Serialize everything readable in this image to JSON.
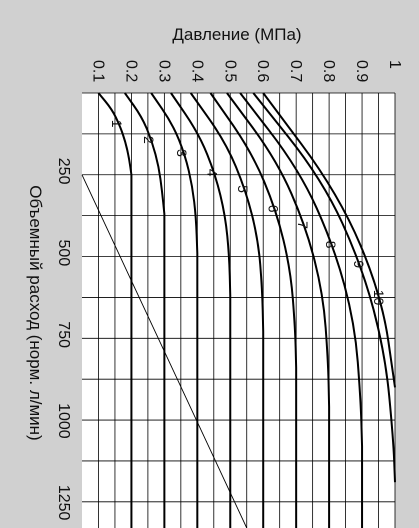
{
  "chart_data": {
    "type": "line",
    "title": "",
    "xlabel": "Давление (МПа)",
    "ylabel": "Объемный расход (норм. л/мин)",
    "x_ticks": [
      "0.1",
      "0.2",
      "0.3",
      "0.4",
      "0.5",
      "0.6",
      "0.7",
      "0.8",
      "0.9",
      "1"
    ],
    "y_ticks": [
      "250",
      "500",
      "750",
      "1000",
      "1250"
    ],
    "xlim": [
      0.05,
      1.0
    ],
    "ylim": [
      0,
      1330
    ],
    "grid": true,
    "series": [
      {
        "name": "1",
        "x": [
          0.1,
          0.141,
          0.165,
          0.182,
          0.193,
          0.2
        ],
        "y": [
          0,
          50,
          100,
          150,
          200,
          250
        ]
      },
      {
        "name": "2",
        "x": [
          0.18,
          0.233,
          0.263,
          0.283,
          0.293,
          0.3
        ],
        "y": [
          0,
          75,
          150,
          225,
          300,
          370
        ]
      },
      {
        "name": "3",
        "x": [
          0.26,
          0.325,
          0.363,
          0.385,
          0.396,
          0.4
        ],
        "y": [
          0,
          95,
          190,
          285,
          380,
          490
        ]
      },
      {
        "name": "4",
        "x": [
          0.32,
          0.405,
          0.455,
          0.485,
          0.497,
          0.5
        ],
        "y": [
          0,
          125,
          250,
          375,
          500,
          620
        ]
      },
      {
        "name": "5",
        "x": [
          0.38,
          0.486,
          0.548,
          0.585,
          0.597,
          0.6
        ],
        "y": [
          0,
          150,
          300,
          450,
          600,
          730
        ]
      },
      {
        "name": "6",
        "x": [
          0.44,
          0.565,
          0.64,
          0.683,
          0.697,
          0.7
        ],
        "y": [
          0,
          180,
          360,
          540,
          720,
          840
        ]
      },
      {
        "name": "7",
        "x": [
          0.49,
          0.641,
          0.73,
          0.782,
          0.797,
          0.8
        ],
        "y": [
          0,
          205,
          410,
          615,
          820,
          960
        ]
      },
      {
        "name": "8",
        "x": [
          0.53,
          0.71,
          0.815,
          0.878,
          0.896,
          0.9
        ],
        "y": [
          0,
          235,
          470,
          705,
          940,
          1080
        ]
      },
      {
        "name": "9",
        "x": [
          0.57,
          0.78,
          0.9,
          0.97,
          0.995,
          1.0
        ],
        "y": [
          0,
          265,
          530,
          795,
          1060,
          1190
        ]
      },
      {
        "name": "10",
        "x": [
          0.6,
          0.83,
          0.96,
          1.0
        ],
        "y": [
          0,
          310,
          620,
          900
        ]
      }
    ],
    "reference_line": {
      "x": [
        0.05,
        0.55
      ],
      "y": [
        250,
        1330
      ]
    }
  }
}
